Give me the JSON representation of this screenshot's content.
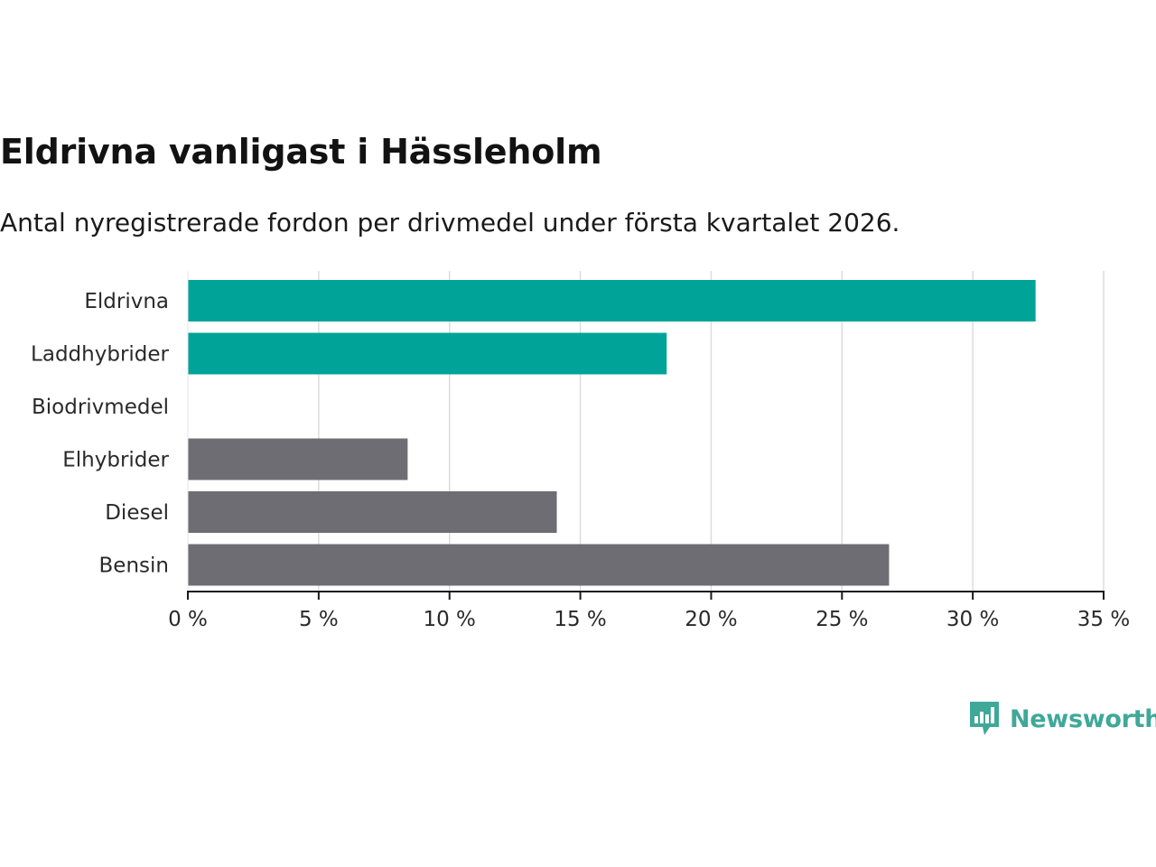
{
  "title": "Eldrivna vanligast i Hässleholm",
  "subtitle": "Antal nyregistrerade fordon per drivmedel under första kvartalet 2026.",
  "logo": {
    "text": "Newsworthy",
    "icon": "newsworthy-logo-icon"
  },
  "colors": {
    "highlight": "#00a398",
    "default": "#6d6d73",
    "grid": "#dcdcdc",
    "brand": "#3fa898"
  },
  "chart_data": {
    "type": "bar",
    "orientation": "horizontal",
    "title": "Eldrivna vanligast i Hässleholm",
    "subtitle": "Antal nyregistrerade fordon per drivmedel under första kvartalet 2026.",
    "categories": [
      "Eldrivna",
      "Laddhybrider",
      "Biodrivmedel",
      "Elhybrider",
      "Diesel",
      "Bensin"
    ],
    "values": [
      32.4,
      18.3,
      0,
      8.4,
      14.1,
      26.8
    ],
    "highlight": [
      true,
      true,
      false,
      false,
      false,
      false
    ],
    "xlim": [
      0,
      35
    ],
    "xticks": [
      0,
      5,
      10,
      15,
      20,
      25,
      30,
      35
    ],
    "xtick_labels": [
      "0 %",
      "5 %",
      "10 %",
      "15 %",
      "20 %",
      "25 %",
      "30 %",
      "35 %"
    ],
    "xlabel": "",
    "ylabel": "",
    "grid": true,
    "legend": "none"
  }
}
